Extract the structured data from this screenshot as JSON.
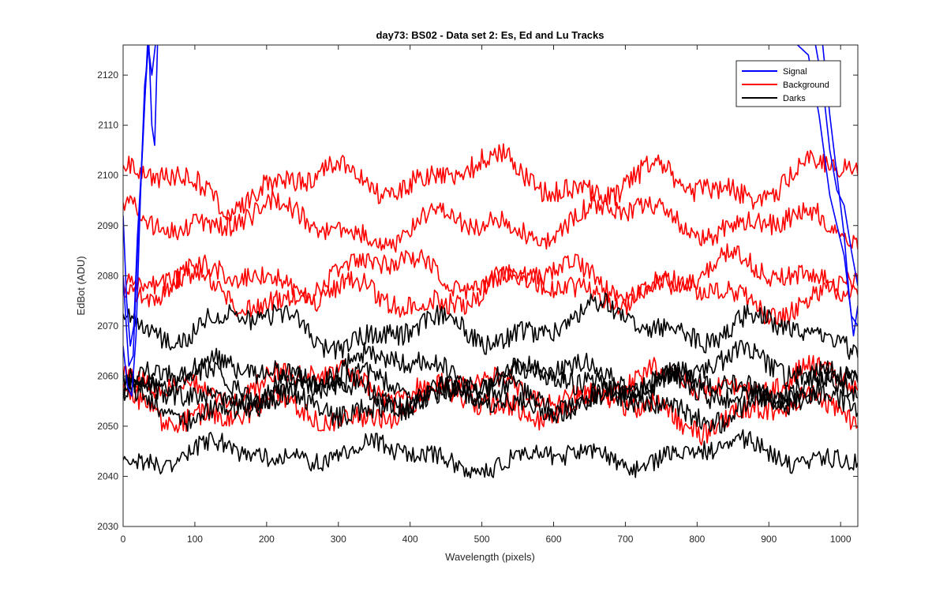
{
  "chart_data": {
    "type": "line",
    "title": "day73: BS02 - Data set 2: Es, Ed and Lu Tracks",
    "xlabel": "Wavelength (pixels)",
    "ylabel": "EdBot (ADU)",
    "xlim": [
      0,
      1024
    ],
    "ylim": [
      2030,
      2126
    ],
    "xticks": [
      0,
      100,
      200,
      300,
      400,
      500,
      600,
      700,
      800,
      900,
      1000
    ],
    "yticks": [
      2030,
      2040,
      2050,
      2060,
      2070,
      2080,
      2090,
      2100,
      2110,
      2120
    ],
    "legend_position": "top-right",
    "colors": {
      "signal": "#0000ff",
      "background": "#ff0000",
      "darks": "#000000",
      "axes": "#262626"
    },
    "legend": [
      {
        "name": "Signal",
        "color": "#0000ff"
      },
      {
        "name": "Background",
        "color": "#ff0000"
      },
      {
        "name": "Darks",
        "color": "#000000"
      }
    ],
    "series": [
      {
        "name": "Signal",
        "group": "signal",
        "color": "#0000ff",
        "base": 2085,
        "wiggle": 0,
        "noise": 0,
        "seed": 11,
        "points": [
          [
            0,
            2092
          ],
          [
            5,
            2075
          ],
          [
            10,
            2066
          ],
          [
            15,
            2070
          ],
          [
            20,
            2088
          ],
          [
            25,
            2100
          ],
          [
            30,
            2115
          ],
          [
            35,
            2126
          ],
          [
            40,
            2120
          ],
          [
            45,
            2126
          ]
        ]
      },
      {
        "name": "Signal",
        "group": "signal",
        "color": "#0000ff",
        "base": 2070,
        "wiggle": 0,
        "noise": 0,
        "seed": 12,
        "points": [
          [
            0,
            2066
          ],
          [
            6,
            2058
          ],
          [
            12,
            2056
          ],
          [
            18,
            2068
          ],
          [
            24,
            2095
          ],
          [
            30,
            2118
          ],
          [
            36,
            2126
          ],
          [
            40,
            2110
          ],
          [
            44,
            2106
          ],
          [
            48,
            2126
          ]
        ]
      },
      {
        "name": "Signal",
        "group": "signal",
        "color": "#0000ff",
        "base": 2070,
        "wiggle": 0,
        "noise": 0,
        "seed": 13,
        "points": [
          [
            0,
            2080
          ],
          [
            8,
            2062
          ],
          [
            14,
            2064
          ],
          [
            20,
            2085
          ],
          [
            28,
            2108
          ],
          [
            34,
            2126
          ]
        ]
      },
      {
        "name": "Signal",
        "group": "signal",
        "color": "#0000ff",
        "base": 2100,
        "wiggle": 0,
        "noise": 0,
        "seed": 14,
        "points": [
          [
            940,
            2126
          ],
          [
            955,
            2124
          ],
          [
            970,
            2112
          ],
          [
            985,
            2096
          ],
          [
            995,
            2090
          ],
          [
            1005,
            2084
          ],
          [
            1015,
            2072
          ],
          [
            1024,
            2070
          ]
        ]
      },
      {
        "name": "Signal",
        "group": "signal",
        "color": "#0000ff",
        "base": 2100,
        "wiggle": 0,
        "noise": 0,
        "seed": 15,
        "points": [
          [
            965,
            2126
          ],
          [
            975,
            2118
          ],
          [
            985,
            2105
          ],
          [
            995,
            2097
          ],
          [
            1005,
            2094
          ],
          [
            1015,
            2085
          ],
          [
            1024,
            2078
          ]
        ]
      },
      {
        "name": "Signal",
        "group": "signal",
        "color": "#0000ff",
        "base": 2100,
        "wiggle": 0,
        "noise": 0,
        "seed": 16,
        "points": [
          [
            975,
            2126
          ],
          [
            985,
            2112
          ],
          [
            995,
            2100
          ],
          [
            1005,
            2088
          ],
          [
            1012,
            2076
          ],
          [
            1018,
            2068
          ],
          [
            1024,
            2074
          ]
        ]
      },
      {
        "name": "Background",
        "group": "background",
        "color": "#ff0000",
        "base": 2099,
        "wiggle": 2.8,
        "noise": 1.4,
        "seed": 21,
        "points": []
      },
      {
        "name": "Background",
        "group": "background",
        "color": "#ff0000",
        "base": 2090.5,
        "wiggle": 2.5,
        "noise": 1.3,
        "seed": 22,
        "points": []
      },
      {
        "name": "Background",
        "group": "background",
        "color": "#ff0000",
        "base": 2080,
        "wiggle": 2.6,
        "noise": 1.3,
        "seed": 23,
        "points": []
      },
      {
        "name": "Background",
        "group": "background",
        "color": "#ff0000",
        "base": 2076.5,
        "wiggle": 2.4,
        "noise": 1.3,
        "seed": 24,
        "points": []
      },
      {
        "name": "Background",
        "group": "background",
        "color": "#ff0000",
        "base": 2058,
        "wiggle": 2.2,
        "noise": 1.4,
        "seed": 25,
        "points": []
      },
      {
        "name": "Background",
        "group": "background",
        "color": "#ff0000",
        "base": 2053.5,
        "wiggle": 2.4,
        "noise": 1.4,
        "seed": 26,
        "points": []
      },
      {
        "name": "Darks",
        "group": "darks",
        "color": "#000000",
        "base": 2069.5,
        "wiggle": 2.6,
        "noise": 1.3,
        "seed": 31,
        "points": []
      },
      {
        "name": "Darks",
        "group": "darks",
        "color": "#000000",
        "base": 2061,
        "wiggle": 2.2,
        "noise": 1.3,
        "seed": 32,
        "points": []
      },
      {
        "name": "Darks",
        "group": "darks",
        "color": "#000000",
        "base": 2058.5,
        "wiggle": 2.0,
        "noise": 1.4,
        "seed": 33,
        "points": []
      },
      {
        "name": "Darks",
        "group": "darks",
        "color": "#000000",
        "base": 2056.5,
        "wiggle": 2.0,
        "noise": 1.4,
        "seed": 34,
        "points": []
      },
      {
        "name": "Darks",
        "group": "darks",
        "color": "#000000",
        "base": 2054.5,
        "wiggle": 2.0,
        "noise": 1.4,
        "seed": 35,
        "points": []
      },
      {
        "name": "Darks",
        "group": "darks",
        "color": "#000000",
        "base": 2044,
        "wiggle": 1.8,
        "noise": 1.2,
        "seed": 36,
        "points": []
      }
    ]
  }
}
